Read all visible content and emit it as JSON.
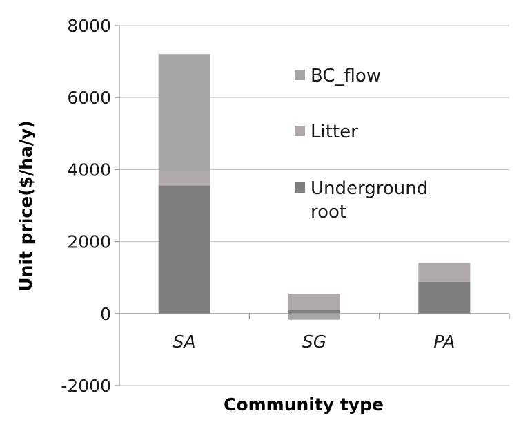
{
  "chart_data": {
    "type": "bar",
    "stacked": true,
    "categories": [
      "SA",
      "SG",
      "PA"
    ],
    "series": [
      {
        "name": "Underground root",
        "values": [
          3560,
          100,
          880
        ],
        "color": "#7f7f7f"
      },
      {
        "name": "Litter",
        "values": [
          380,
          450,
          530
        ],
        "color": "#b0aaaa"
      },
      {
        "name": "BC_flow",
        "values": [
          3270,
          -170,
          0
        ],
        "color": "#a6a6a6"
      }
    ],
    "legend_order": [
      "BC_flow",
      "Litter",
      "Underground root"
    ],
    "legend_placement": "inside-right",
    "xlabel": "Community type",
    "ylabel": "Unit price($/ha/y)",
    "ylim": [
      -2000,
      8000
    ],
    "yticks": [
      "-2000",
      "0",
      "2000",
      "4000",
      "6000",
      "8000"
    ],
    "grid": true
  }
}
